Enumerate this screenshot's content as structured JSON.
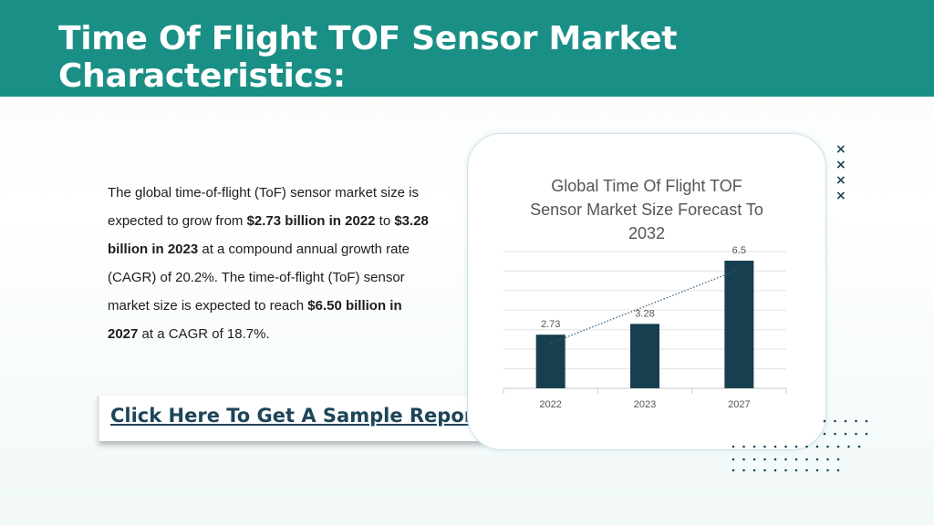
{
  "header": {
    "title": "Time Of Flight TOF Sensor Market Characteristics:"
  },
  "description": {
    "p1": "The global time-of-flight (ToF) sensor market size is expected to grow from ",
    "b1": "$2.73 billion in 2022",
    "p2": " to ",
    "b2": "$3.28 billion in 2023",
    "p3": " at a compound annual growth rate (CAGR) of 20.2%. The time-of-flight (ToF) sensor market size is expected to reach ",
    "b3": "$6.50 billion in 2027",
    "p4": " at a CAGR of 18.7%."
  },
  "cta": {
    "label": "Click Here To Get A Sample Report"
  },
  "decor": {
    "x_mark": "×"
  },
  "colors": {
    "header": "#1a8f85",
    "bar": "#173f4f",
    "link": "#1d4558"
  },
  "chart_data": {
    "type": "bar",
    "title_lines": [
      "Global Time Of Flight TOF",
      "Sensor Market Size Forecast To",
      "2032"
    ],
    "categories": [
      "2022",
      "2023",
      "2027"
    ],
    "values": [
      2.73,
      3.28,
      6.5
    ],
    "value_labels": [
      "2.73",
      "3.28",
      "6.5"
    ],
    "ylim": [
      0,
      6.5
    ],
    "trendline": "dotted linear",
    "grid": true
  }
}
